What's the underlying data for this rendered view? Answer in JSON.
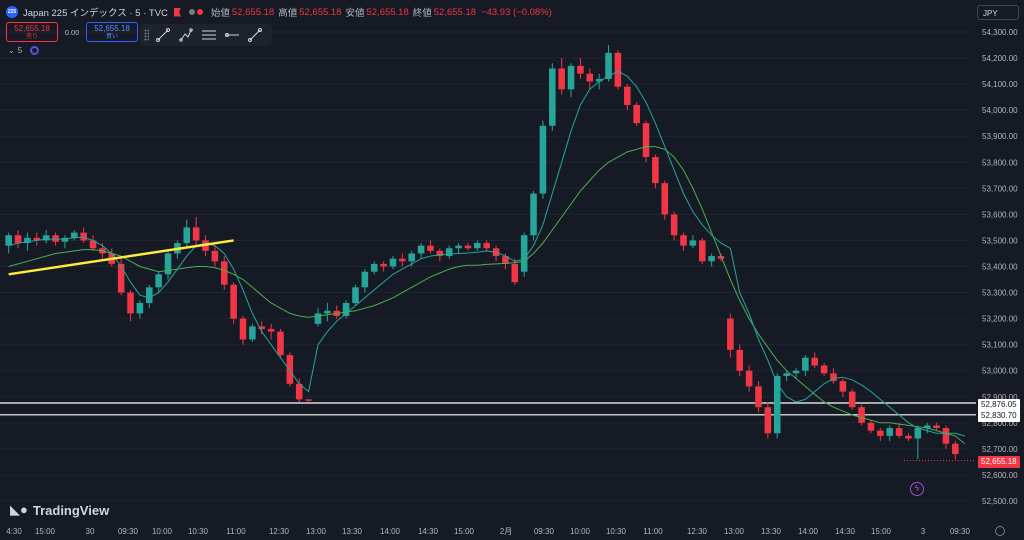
{
  "header": {
    "badge": "225",
    "symbol": "Japan 225 インデックス · 5 · TVC",
    "open_label": "始値",
    "open": "52,655.18",
    "high_label": "高値",
    "high": "52,655.18",
    "low_label": "安値",
    "low": "52,655.18",
    "close_label": "終値",
    "close": "52,655.18",
    "change": "−43.93 (−0.08%)"
  },
  "trade": {
    "sell_price": "52,655.18",
    "sell_label": "売り",
    "spread": "0.00",
    "buy_price": "52,655.18",
    "buy_label": "買い"
  },
  "indicator": {
    "label": "5"
  },
  "currency": "JPY",
  "brand": "TradingView",
  "colors": {
    "up": "#26a69a",
    "down": "#f23645",
    "ma_fast": "#26a69a",
    "ma_slow": "#4caf50",
    "trendline": "#ffeb3b",
    "hline": "#ffffff"
  },
  "icons": [
    "symbol-badge-icon",
    "flag-icon",
    "trendline-tool-icon",
    "polyline-tool-icon",
    "fib-tool-icon",
    "ray-tool-icon",
    "path-tool-icon",
    "bolt-icon",
    "settings-icon",
    "tradingview-logo-icon"
  ],
  "chart_data": {
    "type": "candlestick",
    "ylim": [
      52500,
      54350
    ],
    "y_ticks": [
      "54,300.00",
      "54,200.00",
      "54,100.00",
      "54,000.00",
      "53,900.00",
      "53,800.00",
      "53,700.00",
      "53,600.00",
      "53,500.00",
      "53,400.00",
      "53,300.00",
      "53,200.00",
      "53,100.00",
      "53,000.00",
      "52,900.00",
      "52,800.00",
      "52,700.00",
      "52,600.00",
      "52,500.00"
    ],
    "y_tick_values": [
      54300,
      54200,
      54100,
      54000,
      53900,
      53800,
      53700,
      53600,
      53500,
      53400,
      53300,
      53200,
      53100,
      53000,
      52900,
      52800,
      52700,
      52600,
      52500
    ],
    "x_ticks": [
      "4:30",
      "15:00",
      "30",
      "09:30",
      "10:00",
      "10:30",
      "11:00",
      "12:30",
      "13:00",
      "13:30",
      "14:00",
      "14:30",
      "15:00",
      "2月",
      "09:30",
      "10:00",
      "10:30",
      "11:00",
      "12:30",
      "13:00",
      "13:30",
      "14:00",
      "14:30",
      "15:00",
      "3",
      "09:30"
    ],
    "candles": [
      [
        53480,
        53530,
        53450,
        53520
      ],
      [
        53520,
        53540,
        53470,
        53490
      ],
      [
        53490,
        53530,
        53460,
        53510
      ],
      [
        53510,
        53530,
        53480,
        53500
      ],
      [
        53500,
        53540,
        53490,
        53520
      ],
      [
        53520,
        53530,
        53480,
        53495
      ],
      [
        53495,
        53520,
        53470,
        53510
      ],
      [
        53510,
        53540,
        53500,
        53530
      ],
      [
        53530,
        53550,
        53490,
        53500
      ],
      [
        53500,
        53520,
        53460,
        53470
      ],
      [
        53470,
        53490,
        53430,
        53450
      ],
      [
        53450,
        53470,
        53400,
        53410
      ],
      [
        53410,
        53430,
        53290,
        53300
      ],
      [
        53300,
        53310,
        53190,
        53220
      ],
      [
        53220,
        53270,
        53200,
        53260
      ],
      [
        53260,
        53330,
        53240,
        53320
      ],
      [
        53320,
        53380,
        53300,
        53370
      ],
      [
        53370,
        53460,
        53350,
        53450
      ],
      [
        53450,
        53500,
        53430,
        53490
      ],
      [
        53490,
        53580,
        53470,
        53550
      ],
      [
        53550,
        53590,
        53480,
        53500
      ],
      [
        53500,
        53520,
        53440,
        53460
      ],
      [
        53460,
        53480,
        53400,
        53420
      ],
      [
        53420,
        53440,
        53310,
        53330
      ],
      [
        53330,
        53340,
        53180,
        53200
      ],
      [
        53200,
        53210,
        53100,
        53120
      ],
      [
        53120,
        53180,
        53110,
        53170
      ],
      [
        53170,
        53190,
        53140,
        53160
      ],
      [
        53160,
        53180,
        53120,
        53150
      ],
      [
        53150,
        53160,
        53050,
        53060
      ],
      [
        53060,
        53070,
        52940,
        52950
      ],
      [
        52950,
        52970,
        52880,
        52890
      ],
      [
        52890,
        52890,
        52880,
        52885
      ],
      [
        53180,
        53240,
        53170,
        53220
      ],
      [
        53220,
        53260,
        53190,
        53230
      ],
      [
        53230,
        53250,
        53200,
        53210
      ],
      [
        53210,
        53270,
        53200,
        53260
      ],
      [
        53260,
        53330,
        53250,
        53320
      ],
      [
        53320,
        53390,
        53300,
        53380
      ],
      [
        53380,
        53420,
        53370,
        53410
      ],
      [
        53410,
        53420,
        53380,
        53400
      ],
      [
        53400,
        53440,
        53390,
        53430
      ],
      [
        53430,
        53450,
        53400,
        53420
      ],
      [
        53420,
        53460,
        53400,
        53450
      ],
      [
        53450,
        53490,
        53430,
        53480
      ],
      [
        53480,
        53500,
        53450,
        53460
      ],
      [
        53460,
        53470,
        53420,
        53440
      ],
      [
        53440,
        53480,
        53430,
        53470
      ],
      [
        53470,
        53490,
        53450,
        53480
      ],
      [
        53480,
        53490,
        53460,
        53470
      ],
      [
        53470,
        53500,
        53460,
        53490
      ],
      [
        53490,
        53500,
        53460,
        53470
      ],
      [
        53470,
        53480,
        53420,
        53440
      ],
      [
        53440,
        53450,
        53390,
        53410
      ],
      [
        53410,
        53430,
        53330,
        53340
      ],
      [
        53380,
        53530,
        53360,
        53520
      ],
      [
        53520,
        53690,
        53500,
        53680
      ],
      [
        53680,
        53960,
        53660,
        53940
      ],
      [
        53940,
        54180,
        53920,
        54160
      ],
      [
        54160,
        54200,
        54060,
        54080
      ],
      [
        54080,
        54180,
        54050,
        54170
      ],
      [
        54170,
        54200,
        54120,
        54140
      ],
      [
        54140,
        54160,
        54080,
        54110
      ],
      [
        54110,
        54140,
        54080,
        54120
      ],
      [
        54120,
        54250,
        54110,
        54220
      ],
      [
        54220,
        54230,
        54080,
        54090
      ],
      [
        54090,
        54100,
        54000,
        54020
      ],
      [
        54020,
        54030,
        53940,
        53950
      ],
      [
        53950,
        53960,
        53800,
        53820
      ],
      [
        53820,
        53830,
        53700,
        53720
      ],
      [
        53720,
        53730,
        53580,
        53600
      ],
      [
        53600,
        53610,
        53500,
        53520
      ],
      [
        53520,
        53530,
        53460,
        53480
      ],
      [
        53480,
        53520,
        53470,
        53500
      ],
      [
        53500,
        53510,
        53410,
        53420
      ],
      [
        53420,
        53450,
        53400,
        53440
      ],
      [
        53440,
        53450,
        53420,
        53430
      ],
      [
        53200,
        53220,
        53050,
        53080
      ],
      [
        53080,
        53100,
        52980,
        53000
      ],
      [
        53000,
        53020,
        52920,
        52940
      ],
      [
        52940,
        52960,
        52840,
        52860
      ],
      [
        52860,
        52880,
        52740,
        52760
      ],
      [
        52760,
        52990,
        52740,
        52980
      ],
      [
        52980,
        53000,
        52960,
        52990
      ],
      [
        52990,
        53010,
        52970,
        53000
      ],
      [
        53000,
        53060,
        52980,
        53050
      ],
      [
        53050,
        53070,
        53010,
        53020
      ],
      [
        53020,
        53030,
        52980,
        52990
      ],
      [
        52990,
        53010,
        52950,
        52960
      ],
      [
        52960,
        52970,
        52900,
        52920
      ],
      [
        52920,
        52930,
        52850,
        52860
      ],
      [
        52860,
        52870,
        52790,
        52800
      ],
      [
        52800,
        52810,
        52760,
        52770
      ],
      [
        52770,
        52780,
        52730,
        52750
      ],
      [
        52750,
        52790,
        52730,
        52780
      ],
      [
        52780,
        52800,
        52740,
        52750
      ],
      [
        52750,
        52760,
        52730,
        52740
      ],
      [
        52740,
        52790,
        52660,
        52780
      ],
      [
        52780,
        52800,
        52760,
        52790
      ],
      [
        52790,
        52800,
        52770,
        52780
      ],
      [
        52780,
        52790,
        52700,
        52720
      ],
      [
        52720,
        52730,
        52660,
        52680
      ]
    ],
    "ma_fast": [
      53480,
      53490,
      53495,
      53500,
      53505,
      53505,
      53505,
      53510,
      53512,
      53500,
      53480,
      53450,
      53400,
      53340,
      53290,
      53280,
      53300,
      53340,
      53390,
      53440,
      53480,
      53490,
      53480,
      53450,
      53390,
      53310,
      53220,
      53150,
      53100,
      53050,
      53000,
      52950,
      52920,
      53100,
      53150,
      53190,
      53220,
      53250,
      53280,
      53310,
      53340,
      53370,
      53390,
      53410,
      53430,
      53440,
      53445,
      53448,
      53450,
      53452,
      53455,
      53460,
      53455,
      53440,
      53420,
      53430,
      53480,
      53560,
      53680,
      53800,
      53920,
      54020,
      54080,
      54110,
      54130,
      54150,
      54130,
      54090,
      54030,
      53950,
      53860,
      53770,
      53680,
      53610,
      53560,
      53520,
      53490,
      53470,
      53300,
      53220,
      53120,
      53040,
      52950,
      52900,
      52880,
      52890,
      52920,
      52950,
      52970,
      52975,
      52965,
      52945,
      52920,
      52890,
      52860,
      52830,
      52800,
      52780,
      52770,
      52760,
      52760,
      52760,
      52750
    ],
    "ma_slow": [
      53400,
      53410,
      53420,
      53430,
      53440,
      53450,
      53455,
      53460,
      53465,
      53465,
      53460,
      53450,
      53440,
      53420,
      53400,
      53390,
      53380,
      53385,
      53390,
      53395,
      53400,
      53400,
      53395,
      53385,
      53370,
      53350,
      53320,
      53290,
      53260,
      53240,
      53220,
      53210,
      53205,
      53210,
      53215,
      53220,
      53225,
      53230,
      53240,
      53250,
      53265,
      53280,
      53300,
      53320,
      53340,
      53360,
      53375,
      53390,
      53400,
      53405,
      53405,
      53408,
      53410,
      53412,
      53415,
      53420,
      53450,
      53490,
      53540,
      53590,
      53640,
      53690,
      53730,
      53770,
      53800,
      53820,
      53840,
      53850,
      53860,
      53860,
      53850,
      53820,
      53770,
      53700,
      53620,
      53530,
      53440,
      53350,
      53270,
      53200,
      53140,
      53090,
      53040,
      53000,
      52970,
      52940,
      52910,
      52880,
      52860,
      52845,
      52830,
      52820,
      52810,
      52800,
      52800,
      52795,
      52790,
      52785,
      52780,
      52770,
      52760,
      52750,
      52720
    ],
    "trendline": [
      [
        0,
        53370
      ],
      [
        24,
        53500
      ]
    ],
    "hlines": [
      52876.05,
      52830.7
    ],
    "hline_labels": [
      "52,876.05",
      "52,830.70"
    ],
    "last_price": 52655.18,
    "last_price_label": "52,655.18"
  }
}
